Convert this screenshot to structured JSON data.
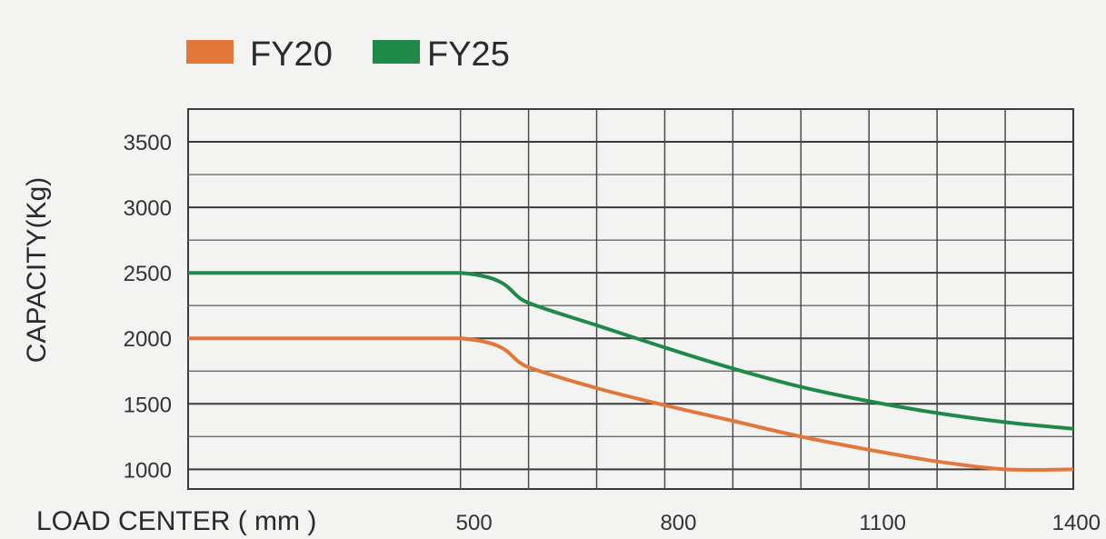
{
  "chart_data": {
    "type": "line",
    "legend_position": "top-left",
    "grid": true,
    "xlabel": "LOAD CENTER ( mm )",
    "ylabel": "CAPACITY(Kg)",
    "x_ticks": [
      500,
      800,
      1100,
      1400
    ],
    "y_ticks": [
      1000,
      1500,
      2000,
      2500,
      3000,
      3500
    ],
    "xlim": [
      100,
      1400
    ],
    "ylim": [
      850,
      3750
    ],
    "series": [
      {
        "name": "FY20",
        "color": "#e2773a",
        "x": [
          100,
          500,
          600,
          700,
          800,
          900,
          1000,
          1100,
          1200,
          1300,
          1400
        ],
        "y": [
          2000,
          2000,
          1780,
          1620,
          1490,
          1370,
          1250,
          1150,
          1060,
          1000,
          1000
        ]
      },
      {
        "name": "FY25",
        "color": "#1f8a47",
        "x": [
          100,
          500,
          600,
          700,
          800,
          900,
          1000,
          1100,
          1200,
          1300,
          1400
        ],
        "y": [
          2500,
          2500,
          2270,
          2100,
          1930,
          1770,
          1630,
          1520,
          1430,
          1360,
          1310
        ]
      }
    ]
  }
}
